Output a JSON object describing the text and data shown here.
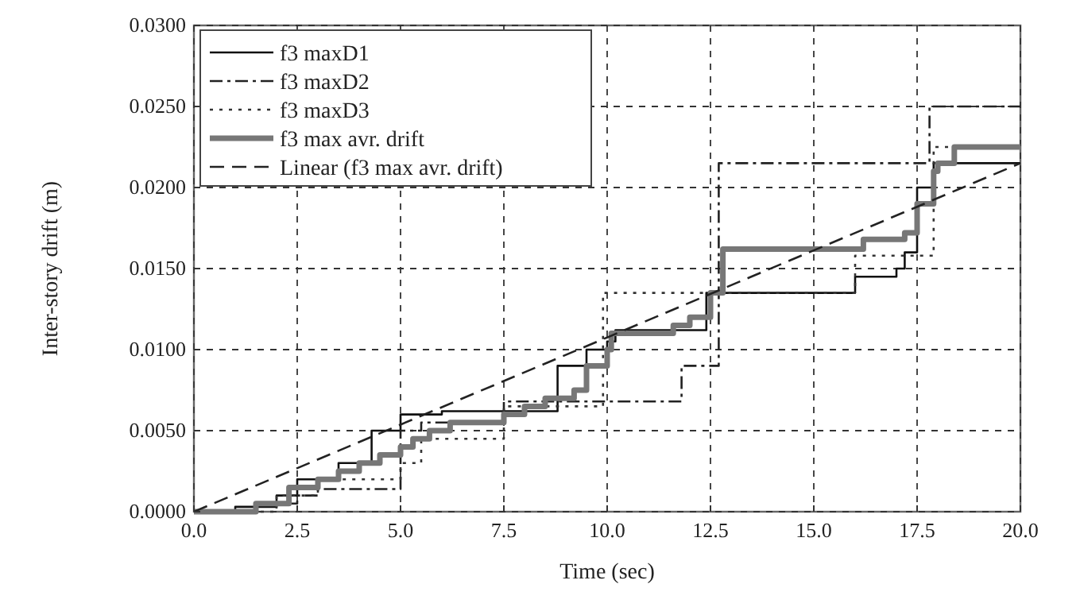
{
  "chart_data": {
    "type": "step",
    "xlabel": "Time (sec)",
    "ylabel": "Inter-story drift (m)",
    "xlim": [
      0,
      20
    ],
    "ylim": [
      0,
      0.03
    ],
    "xticks": [
      {
        "value": 0,
        "label": "0.0"
      },
      {
        "value": 2.5,
        "label": "2.5"
      },
      {
        "value": 5,
        "label": "5.0"
      },
      {
        "value": 7.5,
        "label": "7.5"
      },
      {
        "value": 10,
        "label": "10.0"
      },
      {
        "value": 12.5,
        "label": "12.5"
      },
      {
        "value": 15,
        "label": "15.0"
      },
      {
        "value": 17.5,
        "label": "17.5"
      },
      {
        "value": 20,
        "label": "20.0"
      }
    ],
    "yticks": [
      {
        "value": 0,
        "label": "0.0000"
      },
      {
        "value": 0.005,
        "label": "0.0050"
      },
      {
        "value": 0.01,
        "label": "0.0100"
      },
      {
        "value": 0.015,
        "label": "0.0150"
      },
      {
        "value": 0.02,
        "label": "0.0200"
      },
      {
        "value": 0.025,
        "label": "0.0250"
      },
      {
        "value": 0.03,
        "label": "0.0300"
      }
    ],
    "grid": true,
    "legend": "top left",
    "series": [
      {
        "name": "f3 maxD1",
        "color": "#111111",
        "line_style": "solid",
        "x": [
          0,
          1,
          2,
          2.5,
          3.5,
          4.3,
          5,
          6,
          8.8,
          9.5,
          10,
          10.2,
          12.4,
          16,
          17,
          17.2,
          17.5,
          17.9,
          20
        ],
        "values": [
          0,
          0.0003,
          0.001,
          0.002,
          0.003,
          0.005,
          0.006,
          0.0062,
          0.009,
          0.01,
          0.0105,
          0.0112,
          0.0135,
          0.0145,
          0.015,
          0.016,
          0.02,
          0.0215,
          0.0215
        ]
      },
      {
        "name": "f3 maxD2",
        "color": "#222222",
        "line_style": "dashdot",
        "x": [
          0,
          1.5,
          2.5,
          3,
          5,
          5.5,
          7.5,
          11.8,
          12.7,
          17.8,
          20
        ],
        "values": [
          0,
          0.0005,
          0.001,
          0.0014,
          0.005,
          0.0055,
          0.0068,
          0.009,
          0.0215,
          0.025,
          0.025
        ]
      },
      {
        "name": "f3 maxD3",
        "color": "#333333",
        "line_style": "dotted",
        "x": [
          0,
          2,
          3,
          5,
          5.5,
          7.5,
          9.9,
          16,
          17.9,
          20
        ],
        "values": [
          0,
          0.001,
          0.002,
          0.003,
          0.0045,
          0.0065,
          0.0135,
          0.0158,
          0.0225,
          0.0225
        ]
      },
      {
        "name": "f3 max avr. drift",
        "color": "#777777",
        "line_style": "solid",
        "x": [
          0,
          1.5,
          2.3,
          3,
          3.5,
          4,
          4.5,
          5,
          5.3,
          5.7,
          6.2,
          7.5,
          8,
          8.5,
          9.2,
          9.5,
          10,
          10.1,
          11.6,
          12,
          12.5,
          12.8,
          16.2,
          17.2,
          17.5,
          17.9,
          18,
          18.4,
          20
        ],
        "values": [
          0,
          0.0005,
          0.0015,
          0.002,
          0.0025,
          0.003,
          0.0035,
          0.004,
          0.0045,
          0.005,
          0.0055,
          0.006,
          0.0065,
          0.007,
          0.0075,
          0.009,
          0.01,
          0.011,
          0.0115,
          0.012,
          0.0135,
          0.0162,
          0.0168,
          0.0172,
          0.019,
          0.021,
          0.0215,
          0.0225,
          0.0225
        ]
      },
      {
        "name": "Linear (f3 max avr. drift)",
        "type": "line",
        "color": "#222222",
        "line_style": "dashed",
        "x": [
          0,
          20
        ],
        "values": [
          0,
          0.0215
        ]
      }
    ]
  }
}
